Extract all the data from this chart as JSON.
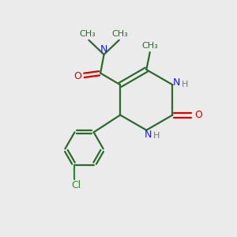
{
  "bg_color": "#ebebeb",
  "bond_color": "#2d6b2d",
  "n_color": "#1a1aff",
  "o_color": "#dd0000",
  "cl_color": "#2d8b2d",
  "figsize": [
    3.0,
    3.0
  ],
  "dpi": 100,
  "xlim": [
    0,
    10
  ],
  "ylim": [
    0,
    10
  ]
}
